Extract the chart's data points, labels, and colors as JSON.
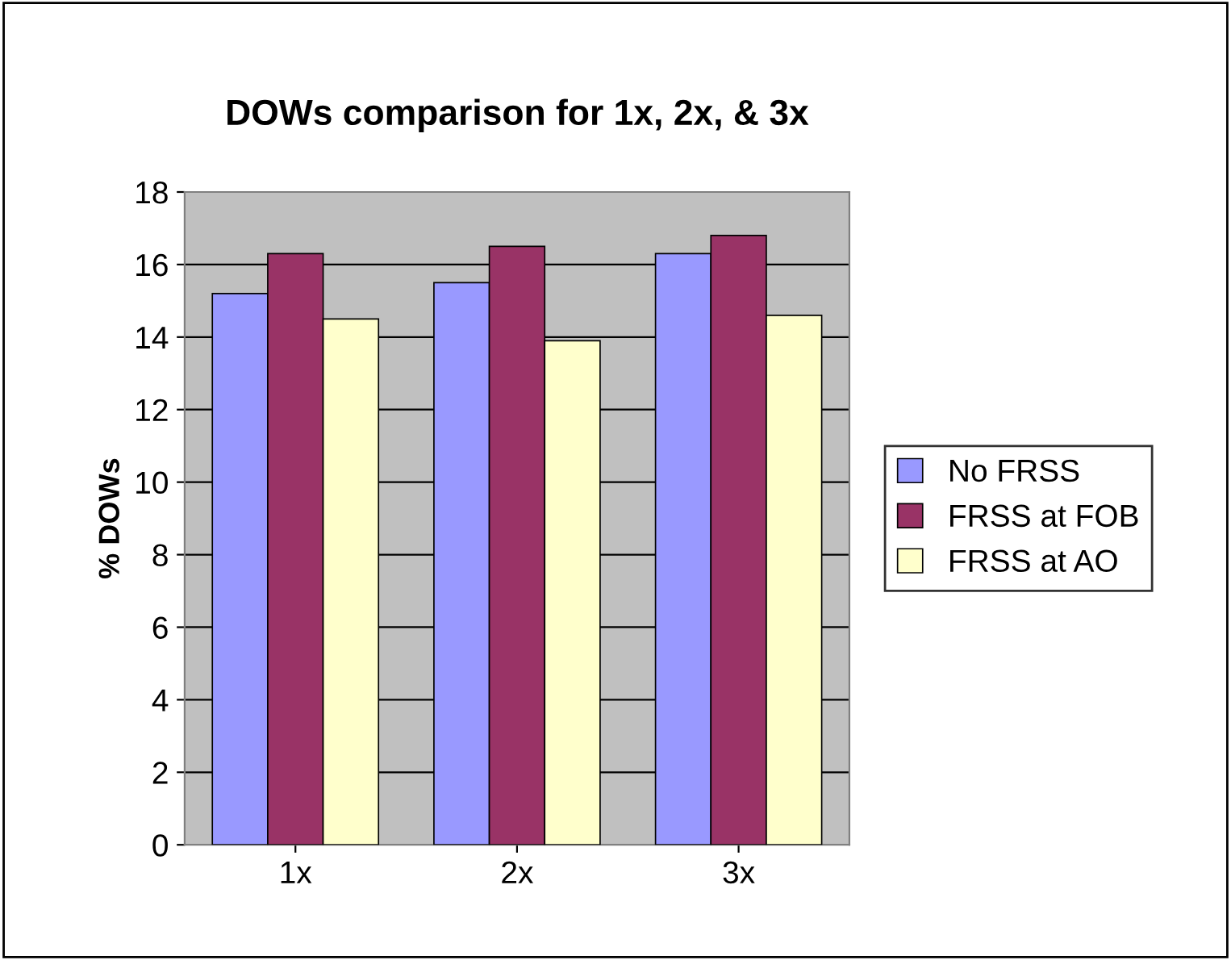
{
  "chart_data": {
    "type": "bar",
    "title": "DOWs comparison for 1x, 2x, & 3x",
    "ylabel": "% DOWs",
    "categories": [
      "1x",
      "2x",
      "3x"
    ],
    "series": [
      {
        "name": "No FRSS",
        "color": "#9999ff",
        "values": [
          15.2,
          15.5,
          16.3
        ]
      },
      {
        "name": "FRSS at FOB",
        "color": "#993366",
        "values": [
          16.3,
          16.5,
          16.8
        ]
      },
      {
        "name": "FRSS at AO",
        "color": "#ffffcc",
        "values": [
          14.5,
          13.9,
          14.6
        ]
      }
    ],
    "ylim": [
      0,
      18
    ],
    "yticks": [
      0,
      2,
      4,
      6,
      8,
      10,
      12,
      14,
      16,
      18
    ],
    "grid": "y",
    "legend": "right"
  }
}
